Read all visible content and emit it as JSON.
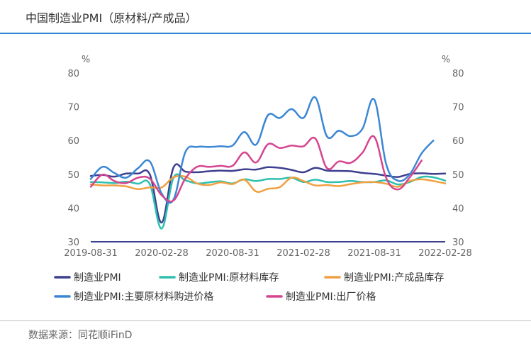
{
  "title": "中国制造业PMI（原材料/产成品）",
  "source": "数据来源：同花顺iFinD",
  "chart_data": {
    "type": "line",
    "unit_left": "%",
    "unit_right": "%",
    "ylim": [
      30,
      80
    ],
    "yticks": [
      30,
      40,
      50,
      60,
      70,
      80
    ],
    "x_tick_labels": [
      "2019-08-31",
      "2020-02-28",
      "2020-08-31",
      "2021-02-28",
      "2021-08-31",
      "2022-02-28"
    ],
    "x": [
      "2019-08",
      "2019-09",
      "2019-10",
      "2019-11",
      "2019-12",
      "2020-01",
      "2020-02",
      "2020-03",
      "2020-04",
      "2020-05",
      "2020-06",
      "2020-07",
      "2020-08",
      "2020-09",
      "2020-10",
      "2020-11",
      "2020-12",
      "2021-01",
      "2021-02",
      "2021-03",
      "2021-04",
      "2021-05",
      "2021-06",
      "2021-07",
      "2021-08",
      "2021-09",
      "2021-10",
      "2021-11",
      "2021-12",
      "2022-01",
      "2022-02"
    ],
    "series": [
      {
        "name": "制造业PMI",
        "color": "#3d3f8f",
        "values": [
          49.5,
          49.8,
          49.3,
          50.2,
          50.2,
          50.0,
          35.7,
          52.0,
          50.8,
          50.6,
          50.9,
          51.1,
          51.0,
          51.5,
          51.4,
          52.1,
          51.9,
          51.3,
          50.6,
          51.9,
          51.1,
          51.0,
          50.9,
          50.4,
          50.1,
          49.6,
          49.2,
          50.1,
          50.3,
          50.1,
          50.2
        ]
      },
      {
        "name": "制造业PMI:原材料库存",
        "color": "#2ebfae",
        "values": [
          47.7,
          47.6,
          47.4,
          47.8,
          47.2,
          47.1,
          33.9,
          49.0,
          48.2,
          47.3,
          47.6,
          47.9,
          47.3,
          48.5,
          48.0,
          48.6,
          48.6,
          49.0,
          47.7,
          48.4,
          47.7,
          47.7,
          48.0,
          47.7,
          47.7,
          48.2,
          47.0,
          47.7,
          49.2,
          49.1,
          48.1
        ]
      },
      {
        "name": "制造业PMI:产成品库存",
        "color": "#f0a040",
        "values": [
          47.0,
          46.7,
          46.7,
          46.4,
          45.6,
          46.1,
          46.1,
          49.1,
          49.3,
          47.3,
          46.8,
          47.6,
          47.1,
          48.4,
          44.9,
          45.7,
          46.2,
          49.0,
          48.0,
          46.7,
          46.8,
          46.5,
          47.1,
          47.6,
          47.7,
          47.2,
          46.3,
          48.0,
          48.5,
          48.0,
          47.3
        ]
      },
      {
        "name": "制造业PMI:主要原材料购进价格",
        "color": "#3b87d4",
        "values": [
          48.6,
          52.2,
          50.4,
          49.0,
          51.8,
          53.8,
          44.3,
          42.5,
          56.5,
          58.1,
          58.1,
          58.3,
          58.5,
          62.5,
          58.8,
          67.5,
          66.7,
          69.3,
          66.7,
          72.8,
          61.2,
          62.9,
          61.3,
          63.5,
          72.1,
          53.0,
          48.1,
          50.0,
          56.2,
          60.0,
          null
        ]
      },
      {
        "name": "制造业PMI:出厂价格",
        "color": "#d6448f",
        "values": [
          46.3,
          49.9,
          48.0,
          47.4,
          49.0,
          48.7,
          43.8,
          42.2,
          48.7,
          52.2,
          52.2,
          52.5,
          52.5,
          56.5,
          53.5,
          58.9,
          57.8,
          58.5,
          58.3,
          60.6,
          51.8,
          53.8,
          53.4,
          56.4,
          61.1,
          48.9,
          45.5,
          49.1,
          54.1,
          null,
          null
        ]
      }
    ],
    "legend_position": "bottom"
  }
}
